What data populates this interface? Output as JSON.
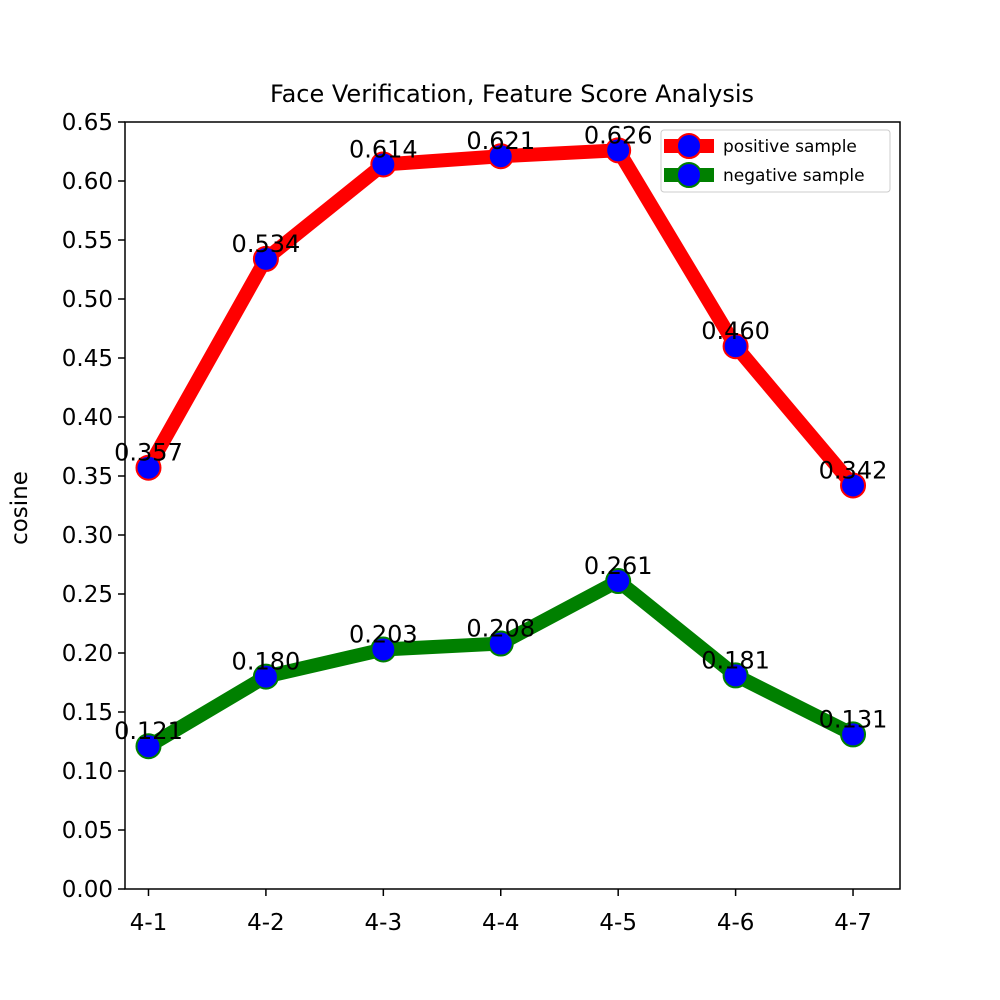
{
  "chart_data": {
    "type": "line",
    "title": "Face Verification, Feature Score Analysis",
    "xlabel": "",
    "ylabel": "cosine",
    "categories": [
      "4-1",
      "4-2",
      "4-3",
      "4-4",
      "4-5",
      "4-6",
      "4-7"
    ],
    "ylim": [
      0,
      0.65
    ],
    "yticks": [
      "0.00",
      "0.05",
      "0.10",
      "0.15",
      "0.20",
      "0.25",
      "0.30",
      "0.35",
      "0.40",
      "0.45",
      "0.50",
      "0.55",
      "0.60",
      "0.65"
    ],
    "grid": false,
    "legend_position": "top-right",
    "series": [
      {
        "name": "positive sample",
        "color": "#ff0000",
        "marker_fill": "#0000ff",
        "values": [
          0.357,
          0.534,
          0.614,
          0.621,
          0.626,
          0.46,
          0.342
        ],
        "labels": [
          "0.357",
          "0.534",
          "0.614",
          "0.621",
          "0.626",
          "0.460",
          "0.342"
        ]
      },
      {
        "name": "negative sample",
        "color": "#008000",
        "marker_fill": "#0000ff",
        "values": [
          0.121,
          0.18,
          0.203,
          0.208,
          0.261,
          0.181,
          0.131
        ],
        "labels": [
          "0.121",
          "0.180",
          "0.203",
          "0.208",
          "0.261",
          "0.181",
          "0.131"
        ]
      }
    ]
  }
}
